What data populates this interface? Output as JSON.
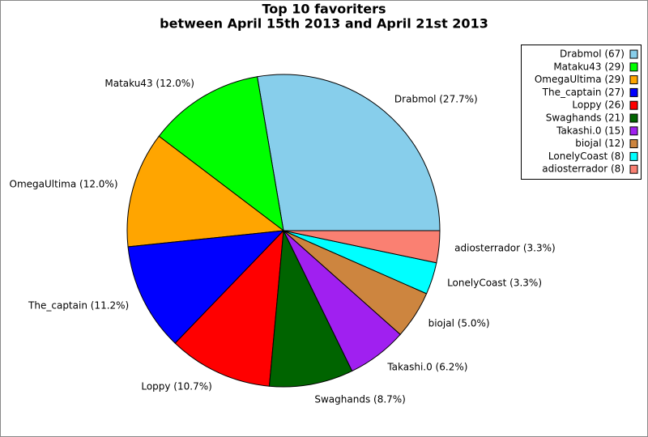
{
  "chart_data": {
    "type": "pie",
    "title": "Top 10 favoriters",
    "subtitle": "between April 15th 2013 and April 21st 2013",
    "categories": [
      "Drabmol (67)",
      "Mataku43 (29)",
      "OmegaUltima (29)",
      "The_captain (27)",
      "Loppy (26)",
      "Swaghands (21)",
      "Takashi.0 (15)",
      "biojal (12)",
      "LonelyCoast (8)",
      "adiosterrador (8)"
    ],
    "values": [
      67,
      29,
      29,
      27,
      26,
      21,
      15,
      12,
      8,
      8
    ],
    "slice_labels": [
      "Drabmol (27.7%)",
      "Mataku43 (12.0%)",
      "OmegaUltima (12.0%)",
      "The_captain (11.2%)",
      "Loppy (10.7%)",
      "Swaghands (8.7%)",
      "Takashi.0 (6.2%)",
      "biojal (5.0%)",
      "LonelyCoast (3.3%)",
      "adiosterrador (3.3%)"
    ],
    "colors": [
      "#87ceeb",
      "#00ff00",
      "#ffa500",
      "#0000ff",
      "#ff0000",
      "#006400",
      "#a020f0",
      "#cd853f",
      "#00ffff",
      "#fa8072"
    ],
    "legend": "upper right"
  }
}
